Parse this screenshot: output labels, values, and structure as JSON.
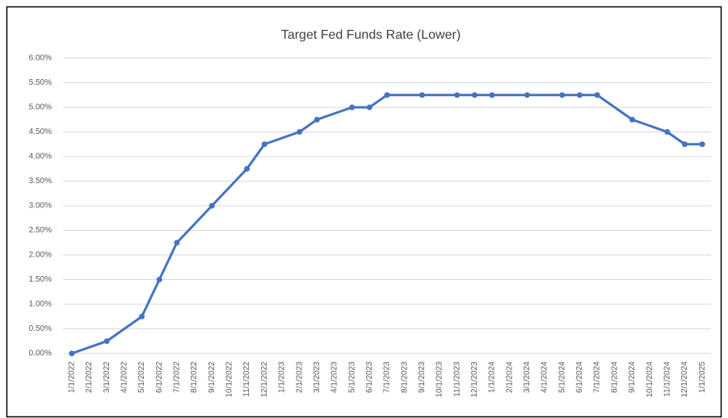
{
  "chart_data": {
    "type": "line",
    "title": "Target Fed Funds Rate (Lower)",
    "x": [
      "1/1/2022",
      "3/1/2022",
      "5/1/2022",
      "6/1/2022",
      "7/1/2022",
      "9/1/2022",
      "11/1/2022",
      "12/1/2022",
      "2/1/2023",
      "3/1/2023",
      "5/1/2023",
      "6/1/2023",
      "7/1/2023",
      "9/1/2023",
      "11/1/2023",
      "12/1/2023",
      "1/1/2024",
      "3/1/2024",
      "5/1/2024",
      "6/1/2024",
      "7/1/2024",
      "9/1/2024",
      "11/1/2024",
      "12/1/2024",
      "1/1/2025"
    ],
    "series": [
      {
        "name": "Target Fed Funds Rate (Lower)",
        "color": "#4472c4",
        "values": [
          0,
          0.25,
          0.75,
          1.5,
          2.25,
          3.0,
          3.75,
          4.25,
          4.5,
          4.75,
          5.0,
          5.0,
          5.25,
          5.25,
          5.25,
          5.25,
          5.25,
          5.25,
          5.25,
          5.25,
          5.25,
          4.75,
          4.5,
          4.25,
          4.25
        ]
      }
    ],
    "xticks": [
      "1/1/2022",
      "2/1/2022",
      "3/1/2022",
      "4/1/2022",
      "5/1/2022",
      "6/1/2022",
      "7/1/2022",
      "8/1/2022",
      "9/1/2022",
      "10/1/2022",
      "11/1/2022",
      "12/1/2022",
      "1/1/2023",
      "2/1/2023",
      "3/1/2023",
      "4/1/2023",
      "5/1/2023",
      "6/1/2023",
      "7/1/2023",
      "8/1/2023",
      "9/1/2023",
      "10/1/2023",
      "11/1/2023",
      "12/1/2023",
      "1/1/2024",
      "2/1/2024",
      "3/1/2024",
      "4/1/2024",
      "5/1/2024",
      "6/1/2024",
      "7/1/2024",
      "8/1/2024",
      "9/1/2024",
      "10/1/2024",
      "11/1/2024",
      "12/1/2024",
      "1/1/2025"
    ],
    "ylim": [
      0,
      6
    ],
    "yticks": [
      {
        "value": 0,
        "label": "0.00%"
      },
      {
        "value": 0.5,
        "label": "0.50%"
      },
      {
        "value": 1,
        "label": "1.00%"
      },
      {
        "value": 1.5,
        "label": "1.50%"
      },
      {
        "value": 2,
        "label": "2.00%"
      },
      {
        "value": 2.5,
        "label": "2.50%"
      },
      {
        "value": 3,
        "label": "3.00%"
      },
      {
        "value": 3.5,
        "label": "3.50%"
      },
      {
        "value": 4,
        "label": "4.00%"
      },
      {
        "value": 4.5,
        "label": "4.50%"
      },
      {
        "value": 5,
        "label": "5.00%"
      },
      {
        "value": 5.5,
        "label": "5.50%"
      },
      {
        "value": 6,
        "label": "6.00%"
      }
    ],
    "grid": true
  }
}
